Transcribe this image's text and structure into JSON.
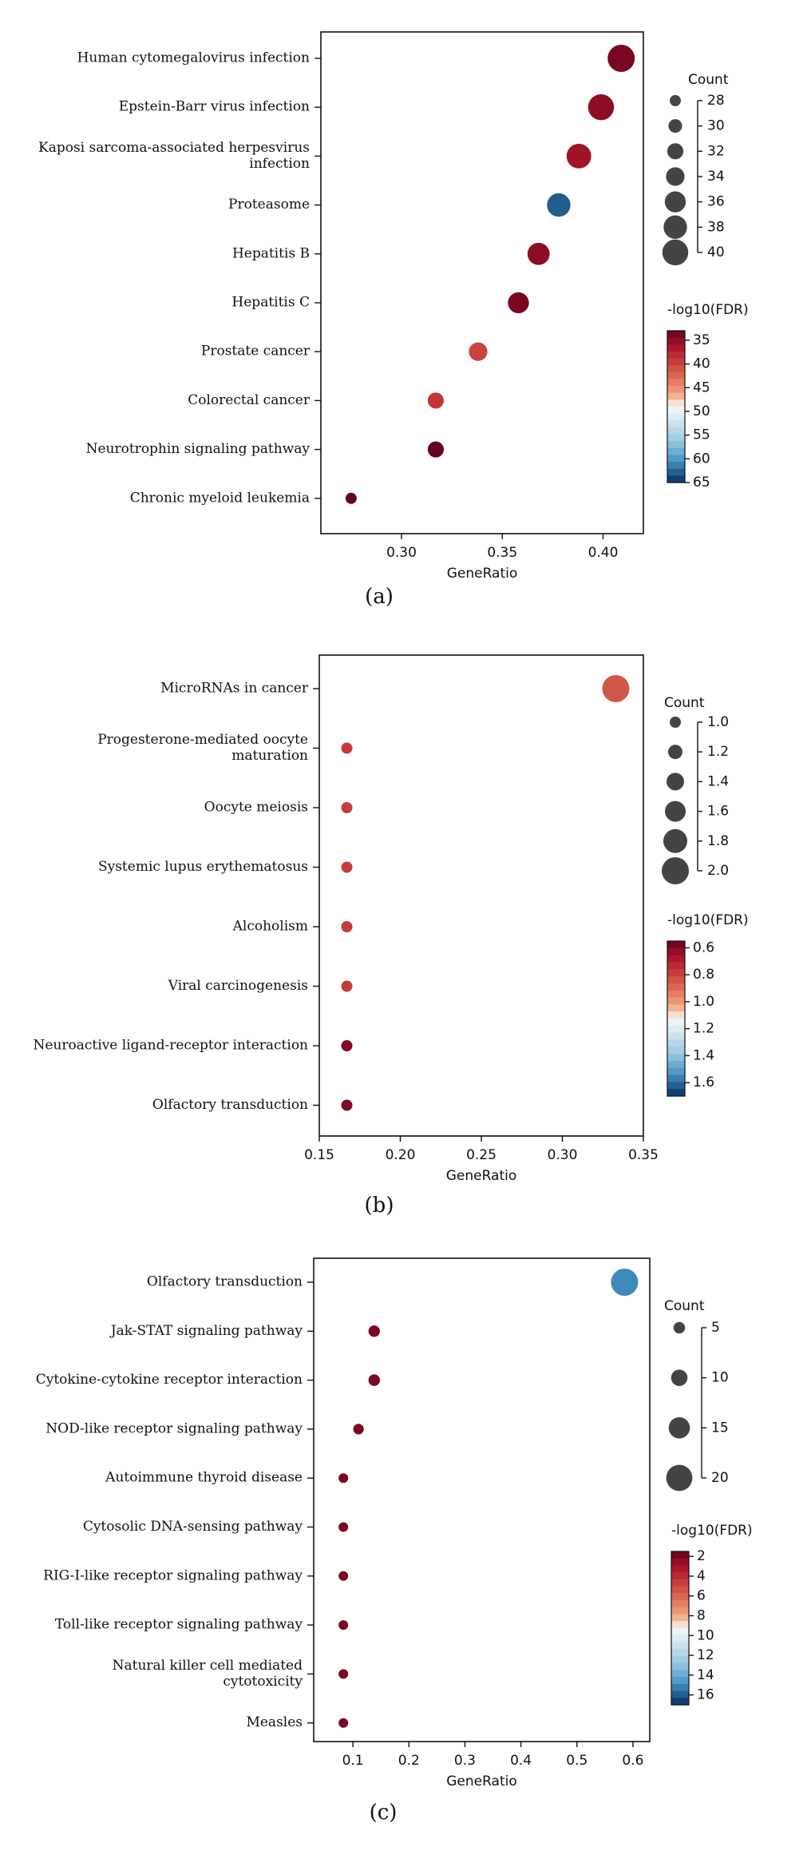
{
  "chart_data": [
    {
      "type": "scatter",
      "panel_label": "(a)",
      "xlabel": "GeneRatio",
      "xticks": [
        "0.30",
        "0.35",
        "0.40"
      ],
      "xtick_values": [
        0.3,
        0.35,
        0.4
      ],
      "xlim": [
        0.26,
        0.42
      ],
      "categories": [
        "Human cytomegalovirus infection",
        "Epstein-Barr virus infection",
        "Kaposi sarcoma-associated herpesvirus infection",
        "Proteasome",
        "Hepatitis B",
        "Hepatitis C",
        "Prostate cancer",
        "Colorectal cancer",
        "Neurotrophin signaling pathway",
        "Chronic myeloid leukemia"
      ],
      "category_lines": [
        [
          "Human cytomegalovirus infection"
        ],
        [
          "Epstein-Barr virus infection"
        ],
        [
          "Kaposi sarcoma-associated herpesvirus",
          "infection"
        ],
        [
          "Proteasome"
        ],
        [
          "Hepatitis B"
        ],
        [
          "Hepatitis C"
        ],
        [
          "Prostate cancer"
        ],
        [
          "Colorectal cancer"
        ],
        [
          "Neurotrophin signaling pathway"
        ],
        [
          "Chronic myeloid leukemia"
        ]
      ],
      "gene_ratio": [
        0.409,
        0.399,
        0.388,
        0.378,
        0.368,
        0.358,
        0.338,
        0.317,
        0.317,
        0.275
      ],
      "count": [
        41,
        40,
        39,
        38,
        37,
        36,
        34,
        32,
        32,
        28
      ],
      "neg_log10_fdr": [
        34,
        35,
        36,
        63,
        35,
        34,
        40,
        39,
        33,
        33
      ],
      "size_legend": {
        "title": "Count",
        "labels": [
          "28",
          "30",
          "32",
          "34",
          "36",
          "38",
          "40"
        ],
        "values": [
          28,
          30,
          32,
          34,
          36,
          38,
          40
        ]
      },
      "color_legend": {
        "title": "-log10(FDR)",
        "labels": [
          "35",
          "40",
          "45",
          "50",
          "55",
          "60",
          "65"
        ],
        "values": [
          35,
          40,
          45,
          50,
          55,
          60,
          65
        ],
        "range": [
          33,
          65
        ]
      }
    },
    {
      "type": "scatter",
      "panel_label": "(b)",
      "xlabel": "GeneRatio",
      "xticks": [
        "0.15",
        "0.20",
        "0.25",
        "0.30",
        "0.35"
      ],
      "xtick_values": [
        0.15,
        0.2,
        0.25,
        0.3,
        0.35
      ],
      "xlim": [
        0.15,
        0.35
      ],
      "categories": [
        "MicroRNAs in cancer",
        "Progesterone-mediated oocyte maturation",
        "Oocyte meiosis",
        "Systemic lupus erythematosus",
        "Alcoholism",
        "Viral carcinogenesis",
        "Neuroactive ligand-receptor interaction",
        "Olfactory transduction"
      ],
      "category_lines": [
        [
          "MicroRNAs in cancer"
        ],
        [
          "Progesterone-mediated oocyte",
          "maturation"
        ],
        [
          "Oocyte meiosis"
        ],
        [
          "Systemic lupus erythematosus"
        ],
        [
          "Alcoholism"
        ],
        [
          "Viral carcinogenesis"
        ],
        [
          "Neuroactive ligand-receptor interaction"
        ],
        [
          "Olfactory transduction"
        ]
      ],
      "gene_ratio": [
        0.333,
        0.167,
        0.167,
        0.167,
        0.167,
        0.167,
        0.167,
        0.167
      ],
      "count": [
        2,
        1,
        1,
        1,
        1,
        1,
        1,
        1
      ],
      "neg_log10_fdr": [
        0.85,
        0.78,
        0.78,
        0.78,
        0.78,
        0.78,
        0.6,
        0.6
      ],
      "size_legend": {
        "title": "Count",
        "labels": [
          "1.0",
          "1.2",
          "1.4",
          "1.6",
          "1.8",
          "2.0"
        ],
        "values": [
          1.0,
          1.2,
          1.4,
          1.6,
          1.8,
          2.0
        ]
      },
      "color_legend": {
        "title": "-log10(FDR)",
        "labels": [
          "0.6",
          "0.8",
          "1.0",
          "1.2",
          "1.4",
          "1.6"
        ],
        "values": [
          0.6,
          0.8,
          1.0,
          1.2,
          1.4,
          1.6
        ],
        "range": [
          0.55,
          1.7
        ]
      }
    },
    {
      "type": "scatter",
      "panel_label": "(c)",
      "xlabel": "GeneRatio",
      "xticks": [
        "0.1",
        "0.2",
        "0.3",
        "0.4",
        "0.5",
        "0.6"
      ],
      "xtick_values": [
        0.1,
        0.2,
        0.3,
        0.4,
        0.5,
        0.6
      ],
      "xlim": [
        0.03,
        0.63
      ],
      "categories": [
        "Olfactory transduction",
        "Jak-STAT signaling pathway",
        "Cytokine-cytokine receptor interaction",
        "NOD-like receptor signaling pathway",
        "Autoimmune thyroid disease",
        "Cytosolic DNA-sensing pathway",
        "RIG-I-like receptor signaling pathway",
        "Toll-like receptor signaling pathway",
        "Natural killer cell mediated cytotoxicity",
        "Measles"
      ],
      "category_lines": [
        [
          "Olfactory transduction"
        ],
        [
          "Jak-STAT signaling pathway"
        ],
        [
          "Cytokine-cytokine receptor interaction"
        ],
        [
          "NOD-like receptor signaling pathway"
        ],
        [
          "Autoimmune thyroid disease"
        ],
        [
          "Cytosolic DNA-sensing pathway"
        ],
        [
          "RIG-I-like receptor signaling pathway"
        ],
        [
          "Toll-like receptor signaling pathway"
        ],
        [
          "Natural killer cell mediated",
          "cytotoxicity"
        ],
        [
          "Measles"
        ]
      ],
      "gene_ratio": [
        0.585,
        0.138,
        0.138,
        0.11,
        0.083,
        0.083,
        0.083,
        0.083,
        0.083,
        0.083
      ],
      "count": [
        21,
        5,
        5,
        4,
        3,
        3,
        3,
        3,
        3,
        3
      ],
      "neg_log10_fdr": [
        15,
        2,
        2,
        2,
        2,
        2,
        2,
        2,
        2,
        2
      ],
      "size_legend": {
        "title": "Count",
        "labels": [
          "5",
          "10",
          "15",
          "20"
        ],
        "values": [
          5,
          10,
          15,
          20
        ]
      },
      "color_legend": {
        "title": "-log10(FDR)",
        "labels": [
          "2",
          "4",
          "6",
          "8",
          "10",
          "12",
          "14",
          "16"
        ],
        "values": [
          2,
          4,
          6,
          8,
          10,
          12,
          14,
          16
        ],
        "range": [
          1.5,
          17
        ]
      }
    }
  ]
}
